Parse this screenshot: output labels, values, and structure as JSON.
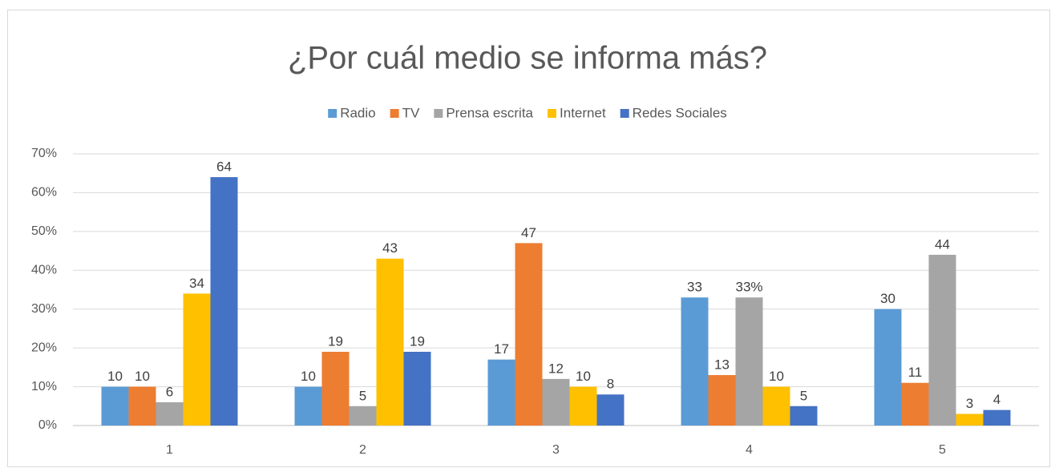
{
  "chart_data": {
    "type": "bar",
    "title": "¿Por cuál medio se informa más?",
    "categories": [
      "1",
      "2",
      "3",
      "4",
      "5"
    ],
    "series": [
      {
        "name": "Radio",
        "color": "#5b9bd5",
        "values": [
          10,
          10,
          17,
          33,
          30
        ]
      },
      {
        "name": "TV",
        "color": "#ed7d31",
        "values": [
          10,
          19,
          47,
          13,
          11
        ]
      },
      {
        "name": "Prensa escrita",
        "color": "#a5a5a5",
        "values": [
          6,
          5,
          12,
          33,
          44
        ],
        "value_labels": [
          "6",
          "5",
          "12",
          "33%",
          "44"
        ]
      },
      {
        "name": "Internet",
        "color": "#ffc000",
        "values": [
          34,
          43,
          10,
          10,
          3
        ]
      },
      {
        "name": "Redes Sociales",
        "color": "#4472c4",
        "values": [
          64,
          19,
          8,
          5,
          4
        ]
      }
    ],
    "ylim": [
      0,
      70
    ],
    "yticks": [
      {
        "value": 0,
        "label": "0%"
      },
      {
        "value": 10,
        "label": "10%"
      },
      {
        "value": 20,
        "label": "20%"
      },
      {
        "value": 30,
        "label": "30%"
      },
      {
        "value": 40,
        "label": "40%"
      },
      {
        "value": 50,
        "label": "50%"
      },
      {
        "value": 60,
        "label": "60%"
      },
      {
        "value": 70,
        "label": "70%"
      }
    ],
    "grid": true,
    "legend": "top"
  }
}
